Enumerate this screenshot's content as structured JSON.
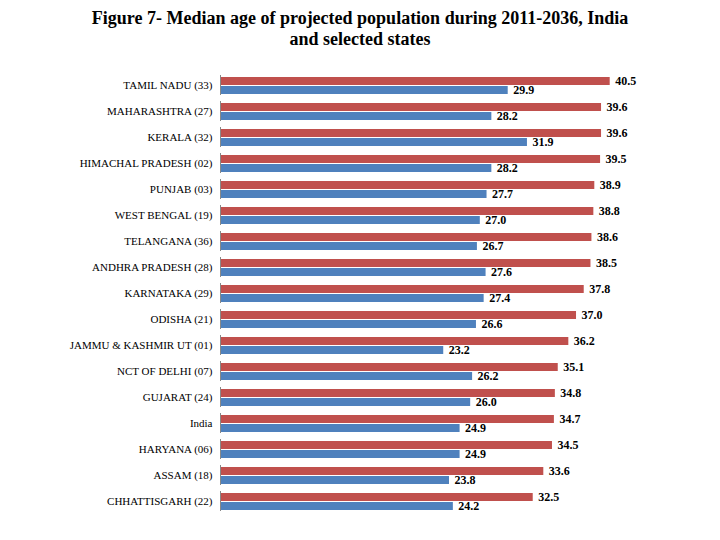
{
  "chart_data": {
    "type": "bar",
    "title": "Figure 7- Median age of projected population during 2011-2036, India and selected states",
    "orientation": "horizontal",
    "categories": [
      "TAMIL NADU (33)",
      "MAHARASHTRA (27)",
      "KERALA (32)",
      "HIMACHAL PRADESH (02)",
      "PUNJAB (03)",
      "WEST BENGAL (19)",
      "TELANGANA (36)",
      "ANDHRA PRADESH (28)",
      "KARNATAKA (29)",
      "ODISHA (21)",
      "JAMMU & KASHMIR UT (01)",
      "NCT OF DELHI (07)",
      "GUJARAT (24)",
      "India",
      "HARYANA (06)",
      "ASSAM (18)",
      "CHHATTISGARH (22)"
    ],
    "series": [
      {
        "color": "#c0504d",
        "values": [
          40.5,
          39.6,
          39.6,
          39.5,
          38.9,
          38.8,
          38.6,
          38.5,
          37.8,
          37.0,
          36.2,
          35.1,
          34.8,
          34.7,
          34.5,
          33.6,
          32.5
        ],
        "value_labels": [
          "40.5",
          "39.6",
          "39.6",
          "39.5",
          "38.9",
          "38.8",
          "38.6",
          "38.5",
          "37.8",
          "37.0",
          "36.2",
          "35.1",
          "34.8",
          "34.7",
          "34.5",
          "33.6",
          "32.5"
        ]
      },
      {
        "color": "#4f81bd",
        "values": [
          29.9,
          28.2,
          31.9,
          28.2,
          27.7,
          27.0,
          26.7,
          27.6,
          27.4,
          26.6,
          23.2,
          26.2,
          26.0,
          24.9,
          24.9,
          23.8,
          24.2
        ],
        "value_labels": [
          "29.9",
          "28.2",
          "31.9",
          "28.2",
          "27.7",
          "27.0",
          "26.7",
          "27.6",
          "27.4",
          "26.6",
          "23.2",
          "26.2",
          "26.0",
          "24.9",
          "24.9",
          "23.8",
          "24.2"
        ]
      }
    ],
    "xlim": [
      0,
      45
    ],
    "grid": false,
    "data_labels": true,
    "tick_labels": "y"
  }
}
